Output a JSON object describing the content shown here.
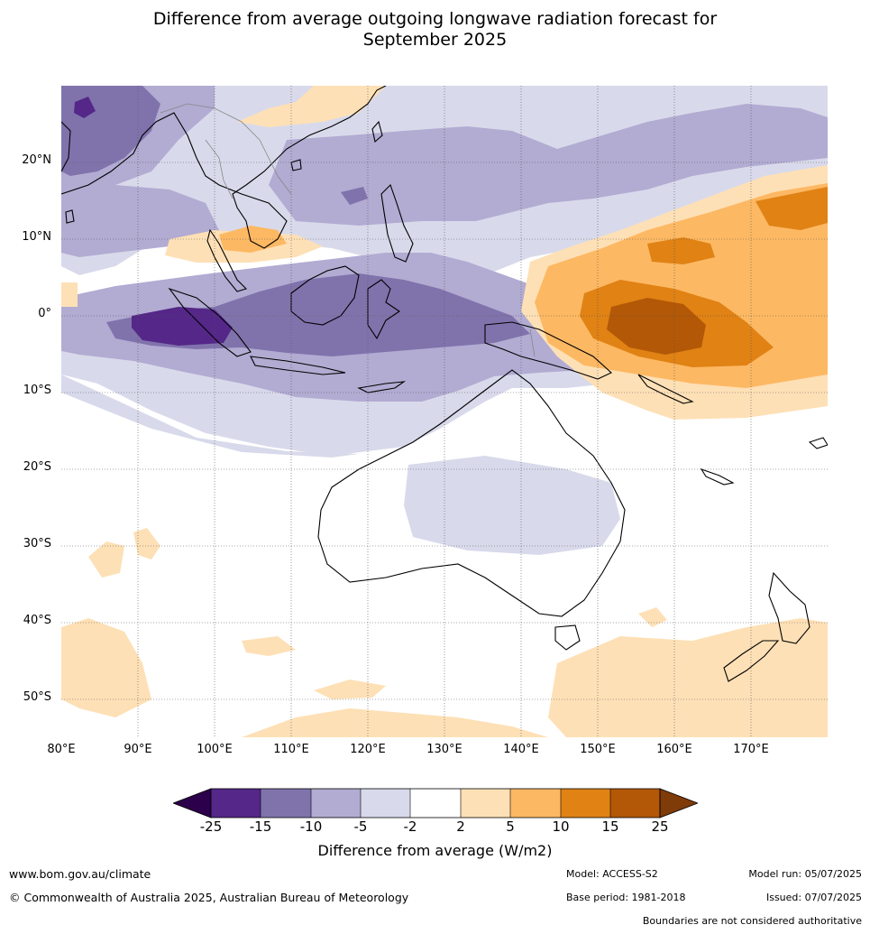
{
  "title_line1": "Difference from average outgoing longwave radiation forecast for",
  "title_line2": "September 2025",
  "lat_labels": [
    "20°N",
    "10°N",
    "0°",
    "10°S",
    "20°S",
    "30°S",
    "40°S",
    "50°S"
  ],
  "lon_labels": [
    "80°E",
    "90°E",
    "100°E",
    "110°E",
    "120°E",
    "130°E",
    "140°E",
    "150°E",
    "160°E",
    "170°E"
  ],
  "map_extent": {
    "lon_min": 80,
    "lon_max": 180,
    "lat_min": -55,
    "lat_max": 30
  },
  "legend": {
    "label": "Difference from average (W/m2)",
    "ticks": [
      "-25",
      "-15",
      "-10",
      "-5",
      "-2",
      "2",
      "5",
      "10",
      "15",
      "25"
    ],
    "colors": {
      "below_min": "#2d004b",
      "n25_n15": "#542788",
      "n15_n10": "#8073ac",
      "n10_n5": "#b2abd2",
      "n5_n2": "#d8daeb",
      "n2_2": "#ffffff",
      "2_5": "#fee0b6",
      "5_10": "#fdb863",
      "10_15": "#e08214",
      "15_25": "#b35806",
      "above_max": "#7f3b08"
    }
  },
  "footer": {
    "website": "www.bom.gov.au/climate",
    "copyright": "© Commonwealth of Australia 2025, Australian Bureau of Meteorology",
    "model": "Model: ACCESS-S2",
    "base_period": "Base period: 1981-2018",
    "model_run": "Model run: 05/07/2025",
    "issued": "Issued: 07/07/2025",
    "disclaimer": "Boundaries are not considered authoritative"
  }
}
